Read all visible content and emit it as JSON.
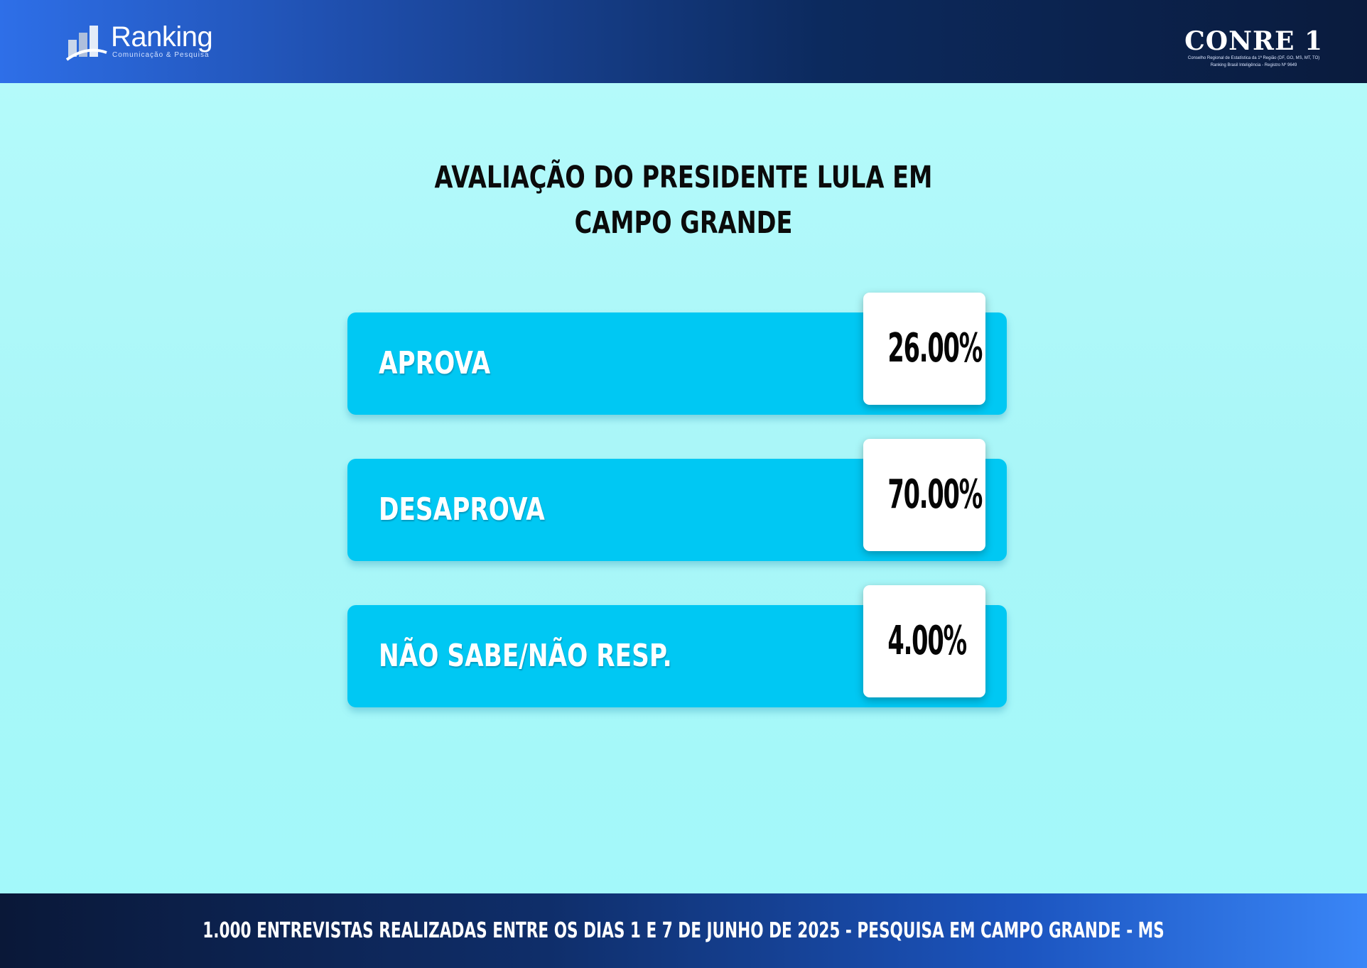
{
  "header": {
    "brand_name": "Ranking",
    "brand_tagline": "Comunicação & Pesquisa",
    "registry_name": "CONRE 1",
    "registry_sub_line1": "Conselho Regional de Estatística da 1ª Região (DF, GO, MS, MT, TO)",
    "registry_sub_line2": "Ranking Brasil Inteligência - Registro Nº 9649"
  },
  "chart_data": {
    "type": "bar",
    "title_line1": "AVALIAÇÃO DO PRESIDENTE LULA EM",
    "title_line2": "CAMPO GRANDE",
    "categories": [
      "APROVA",
      "DESAPROVA",
      "NÃO SABE/NÃO RESP."
    ],
    "values": [
      26.0,
      70.0,
      4.0
    ],
    "value_labels": [
      "26.00%",
      "70.00%",
      "4.00%"
    ],
    "unit": "%",
    "colors": {
      "bar": "#00c8f3",
      "value_box": "#ffffff"
    }
  },
  "footer": {
    "text": "1.000 ENTREVISTAS REALIZADAS ENTRE OS DIAS 1 E 7 DE JUNHO DE 2025  - PESQUISA EM CAMPO GRANDE - MS"
  }
}
